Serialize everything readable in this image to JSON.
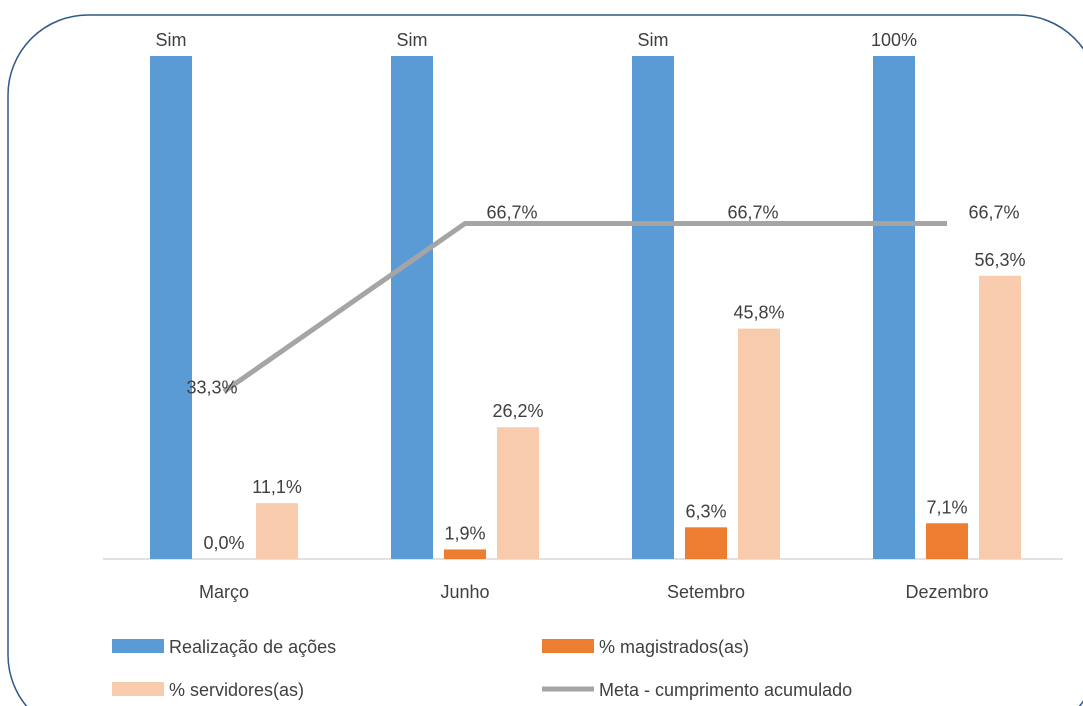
{
  "chart_data": {
    "type": "bar",
    "categories": [
      "Março",
      "Junho",
      "Setembro",
      "Dezembro"
    ],
    "series": [
      {
        "name": "Realização de ações",
        "kind": "bar",
        "color": "#5B9BD5",
        "values": [
          100,
          100,
          100,
          100
        ],
        "labels": [
          "Sim",
          "Sim",
          "Sim",
          "100%"
        ]
      },
      {
        "name": "% magistrados(as)",
        "kind": "bar",
        "color": "#ED7D31",
        "values": [
          0.0,
          1.9,
          6.3,
          7.1
        ],
        "labels": [
          "0,0%",
          "1,9%",
          "6,3%",
          "7,1%"
        ]
      },
      {
        "name": "% servidores(as)",
        "kind": "bar",
        "color": "#F8CBAD",
        "values": [
          11.1,
          26.2,
          45.8,
          56.3
        ],
        "labels": [
          "11,1%",
          "26,2%",
          "45,8%",
          "56,3%"
        ]
      },
      {
        "name": "Meta - cumprimento acumulado",
        "kind": "line",
        "color": "#A5A5A5",
        "values": [
          33.3,
          66.7,
          66.7,
          66.7
        ],
        "labels": [
          "33,3%",
          "66,7%",
          "66,7%",
          "66,7%"
        ]
      }
    ],
    "ylim": [
      0,
      100
    ],
    "grid": false,
    "legend_position": "bottom"
  }
}
